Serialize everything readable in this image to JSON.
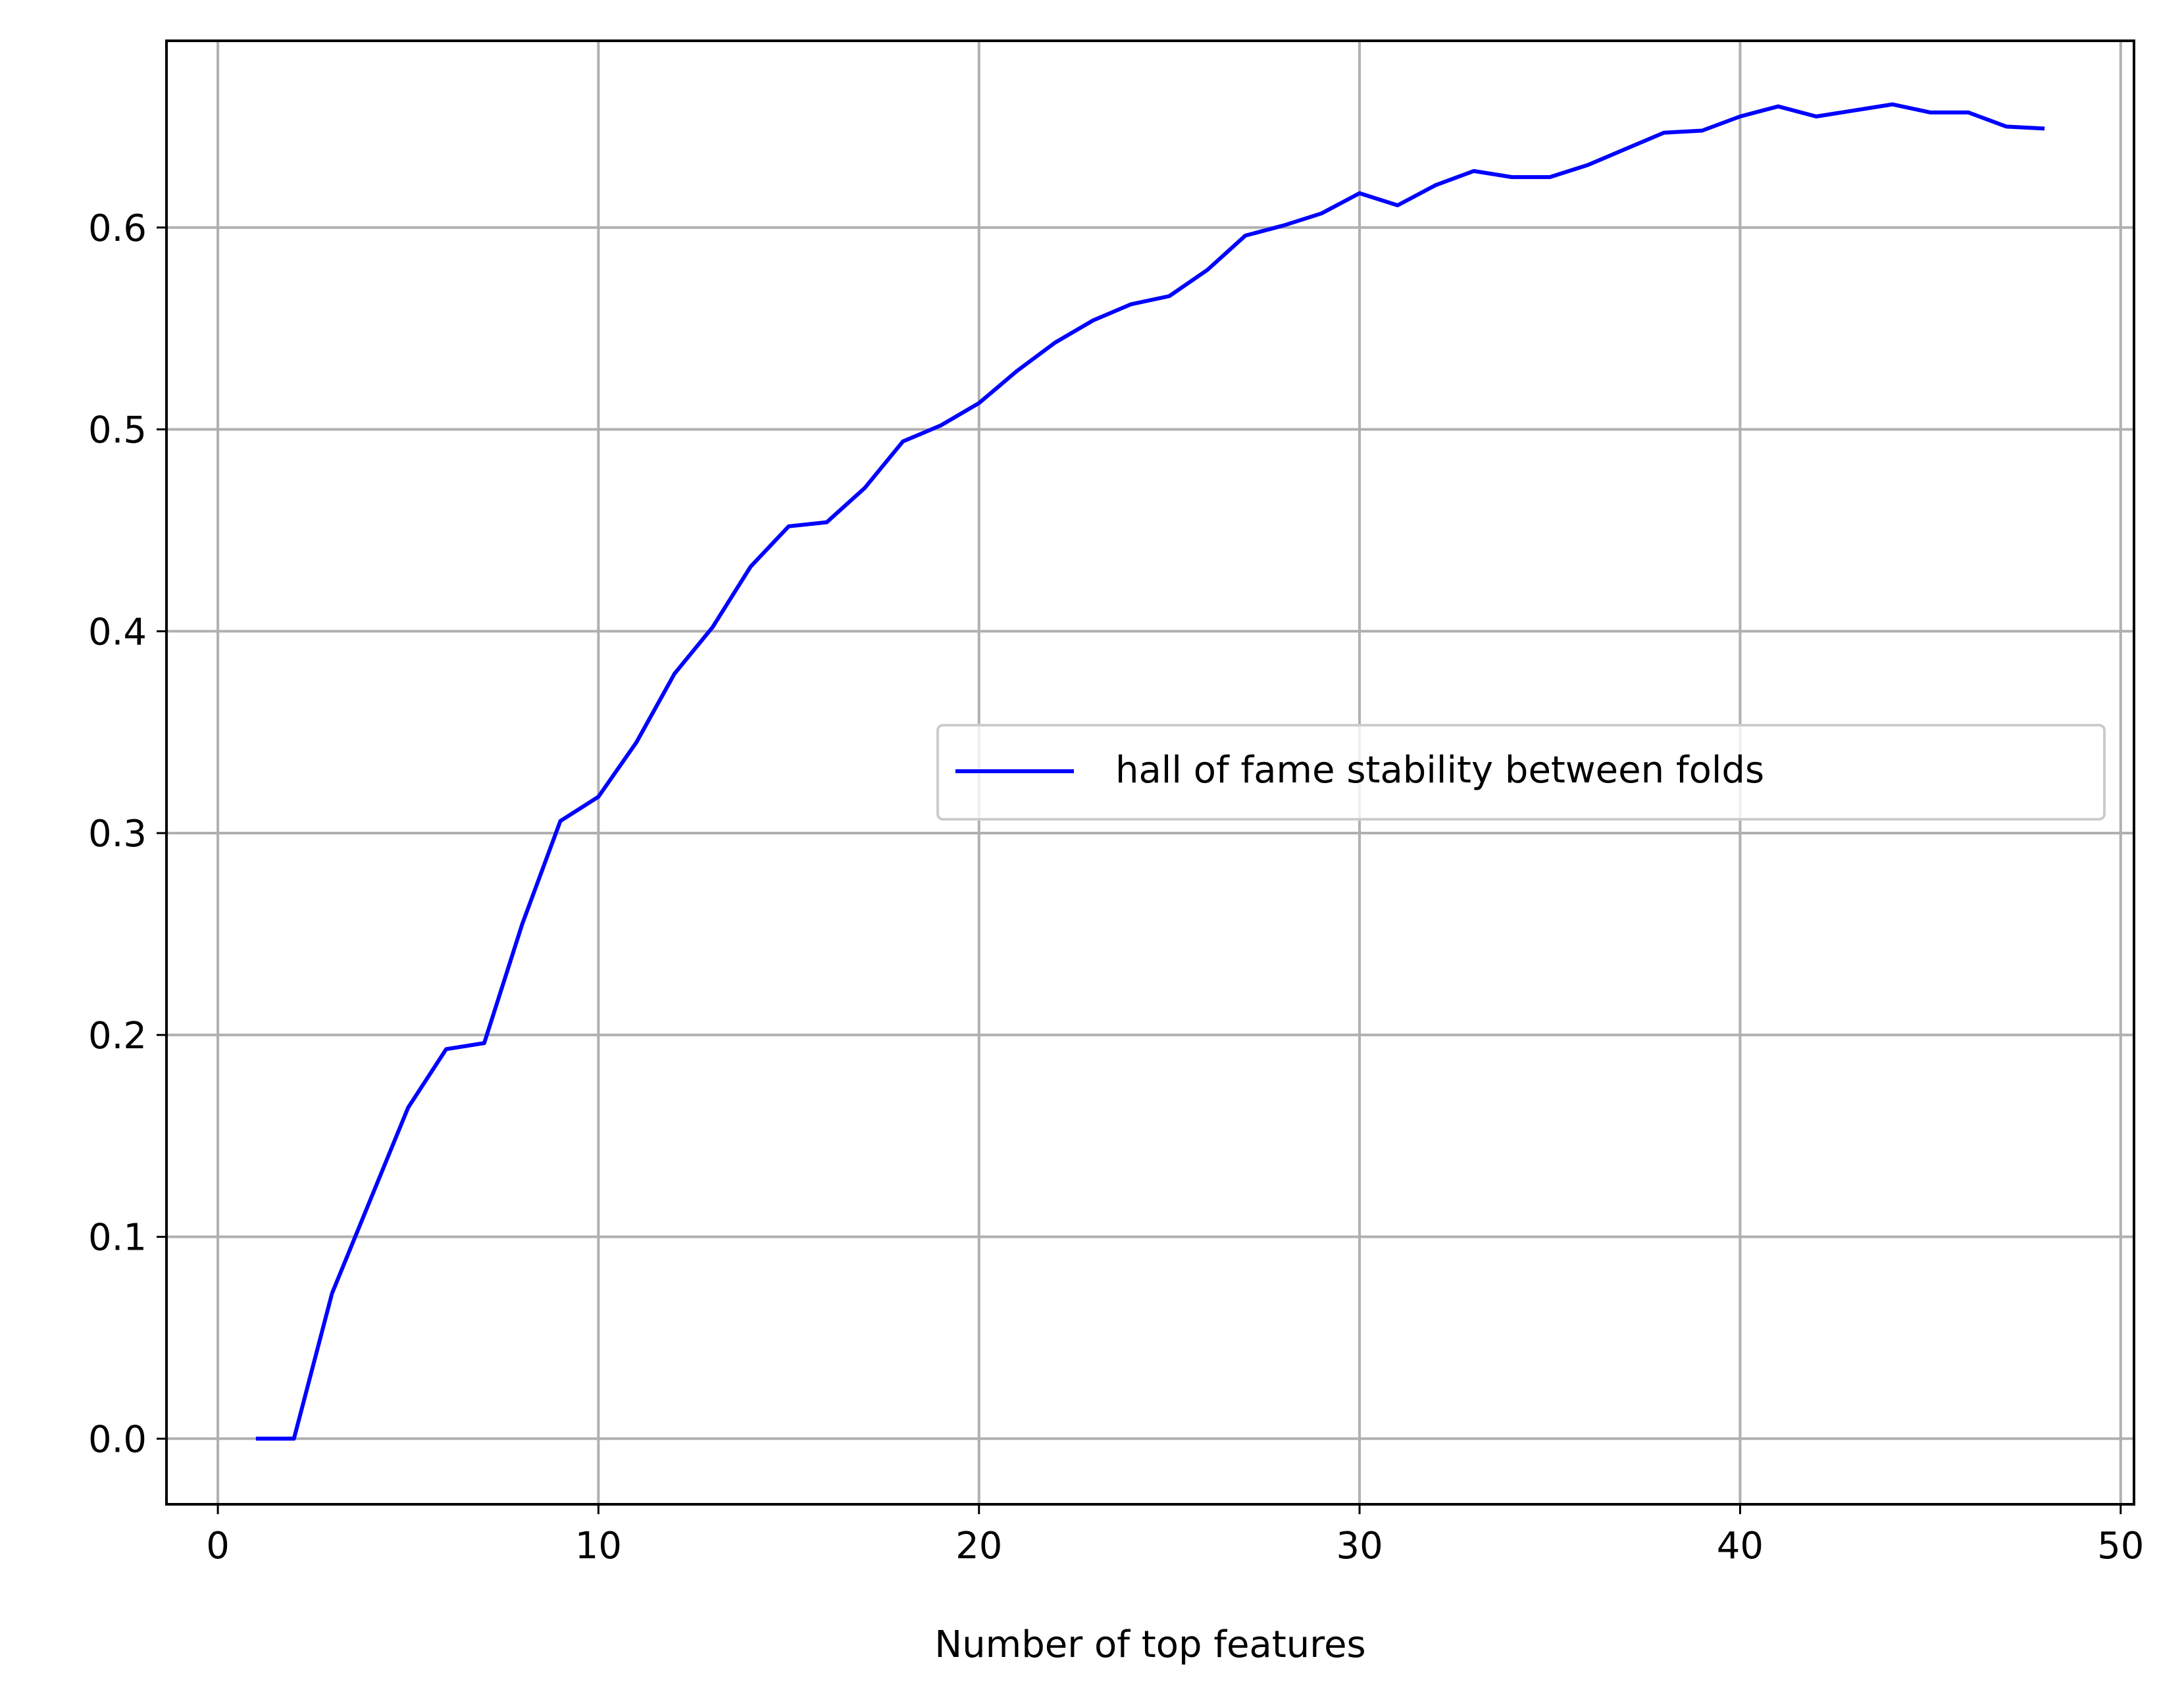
{
  "chart_data": {
    "type": "line",
    "title": "",
    "xlabel": "Number of top features",
    "ylabel": "",
    "xlim": [
      -1.35,
      50.35
    ],
    "ylim": [
      -0.0325,
      0.6925
    ],
    "xticks": [
      0,
      10,
      20,
      30,
      40,
      50
    ],
    "yticks": [
      0.0,
      0.1,
      0.2,
      0.3,
      0.4,
      0.5,
      0.6
    ],
    "xtick_labels": [
      "0",
      "10",
      "20",
      "30",
      "40",
      "50"
    ],
    "ytick_labels": [
      "0.0",
      "0.1",
      "0.2",
      "0.3",
      "0.4",
      "0.5",
      "0.6"
    ],
    "grid": true,
    "legend_position": "center-right",
    "series": [
      {
        "name": "hall of fame stability between folds",
        "color": "#0000ff",
        "x": [
          1,
          2,
          3,
          4,
          5,
          6,
          7,
          8,
          9,
          10,
          11,
          12,
          13,
          14,
          15,
          16,
          17,
          18,
          19,
          20,
          21,
          22,
          23,
          24,
          25,
          26,
          27,
          28,
          29,
          30,
          31,
          32,
          33,
          34,
          35,
          36,
          37,
          38,
          39,
          40,
          41,
          42,
          43,
          44,
          45,
          46,
          47,
          48
        ],
        "y": [
          0.0,
          0.0,
          0.072,
          0.118,
          0.164,
          0.193,
          0.196,
          0.255,
          0.306,
          0.318,
          0.345,
          0.379,
          0.402,
          0.432,
          0.452,
          0.454,
          0.471,
          0.494,
          0.502,
          0.513,
          0.529,
          0.543,
          0.554,
          0.562,
          0.566,
          0.579,
          0.596,
          0.601,
          0.607,
          0.617,
          0.611,
          0.621,
          0.628,
          0.625,
          0.625,
          0.631,
          0.639,
          0.647,
          0.648,
          0.655,
          0.66,
          0.655,
          0.658,
          0.661,
          0.657,
          0.657,
          0.65,
          0.649
        ]
      }
    ]
  }
}
